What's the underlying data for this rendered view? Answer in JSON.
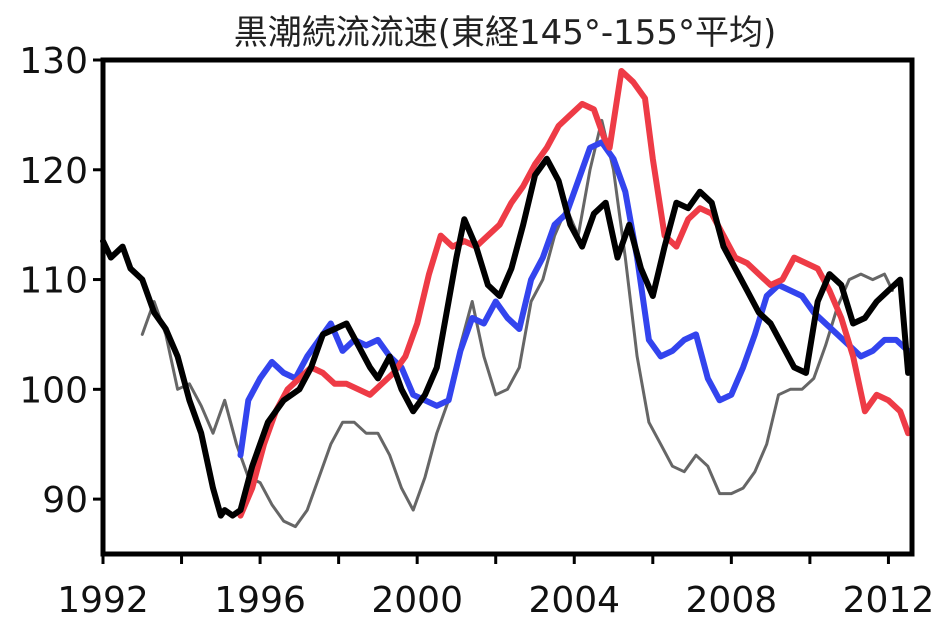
{
  "chart_data": {
    "type": "line",
    "title": "黒潮続流流速(東経145°-155°平均)",
    "xlabel": "",
    "ylabel": "",
    "xlim": [
      1992,
      2012.6
    ],
    "ylim": [
      85,
      130
    ],
    "x_ticks": [
      1992,
      1994,
      1996,
      1998,
      2000,
      2002,
      2004,
      2006,
      2008,
      2010,
      2012
    ],
    "x_tick_labels": [
      "1992",
      "1996",
      "2000",
      "2004",
      "2008",
      "2012"
    ],
    "x_tick_label_values": [
      1992,
      1996,
      2000,
      2004,
      2008,
      2012
    ],
    "y_ticks": [
      90,
      100,
      110,
      120,
      130
    ],
    "y_tick_labels": [
      "90",
      "100",
      "110",
      "120",
      "130"
    ],
    "grid": false,
    "legend": "none",
    "series": [
      {
        "color": "#000000",
        "x": [
          1992.0,
          1992.2,
          1992.5,
          1992.7,
          1993.0,
          1993.3,
          1993.6,
          1993.9,
          1994.2,
          1994.5,
          1994.8,
          1995.0,
          1995.1,
          1995.3,
          1995.5,
          1995.8,
          1996.2,
          1996.6,
          1997.0,
          1997.3,
          1997.6,
          1997.9,
          1998.2,
          1998.5,
          1998.8,
          1999.0,
          1999.3,
          1999.6,
          1999.9,
          2000.2,
          2000.5,
          2000.8,
          2001.0,
          2001.2,
          2001.5,
          2001.8,
          2002.1,
          2002.4,
          2002.7,
          2003.0,
          2003.3,
          2003.6,
          2003.9,
          2004.2,
          2004.5,
          2004.8,
          2005.1,
          2005.4,
          2005.7,
          2006.0,
          2006.3,
          2006.6,
          2006.9,
          2007.2,
          2007.5,
          2007.8,
          2008.1,
          2008.4,
          2008.7,
          2009.0,
          2009.3,
          2009.6,
          2009.9,
          2010.2,
          2010.5,
          2010.8,
          2011.1,
          2011.4,
          2011.7,
          2012.0,
          2012.3,
          2012.5
        ],
        "y": [
          113.5,
          112,
          113,
          111,
          110,
          107,
          105.5,
          103,
          99,
          96,
          91,
          88.5,
          89,
          88.5,
          89,
          93,
          97,
          99,
          100,
          102,
          105,
          105.5,
          106,
          104,
          102,
          101,
          103,
          100,
          98,
          99.5,
          102,
          108,
          112,
          115.5,
          113,
          109.5,
          108.5,
          111,
          115,
          119.5,
          121,
          119,
          115,
          113,
          116,
          117,
          112,
          115,
          111,
          108.5,
          113,
          117,
          116.5,
          118,
          117,
          113,
          111,
          109,
          107,
          106,
          104,
          102,
          101.5,
          108,
          110.5,
          109.5,
          106,
          106.5,
          108,
          109,
          110,
          101.5
        ]
      },
      {
        "color": "#ee3b46",
        "x": [
          1995.5,
          1995.8,
          1996.1,
          1996.4,
          1996.7,
          1997.0,
          1997.3,
          1997.6,
          1997.9,
          1998.2,
          1998.5,
          1998.8,
          1999.1,
          1999.4,
          1999.7,
          2000.0,
          2000.3,
          2000.6,
          2000.9,
          2001.2,
          2001.5,
          2001.8,
          2002.1,
          2002.4,
          2002.7,
          2003.0,
          2003.3,
          2003.6,
          2003.9,
          2004.2,
          2004.5,
          2004.75,
          2004.9,
          2005.2,
          2005.5,
          2005.8,
          2006.0,
          2006.3,
          2006.6,
          2006.9,
          2007.2,
          2007.5,
          2007.8,
          2008.1,
          2008.4,
          2008.7,
          2009.0,
          2009.3,
          2009.6,
          2009.9,
          2010.2,
          2010.5,
          2010.8,
          2011.1,
          2011.4,
          2011.7,
          2012.0,
          2012.3,
          2012.5
        ],
        "y": [
          88.5,
          91,
          95,
          98,
          100,
          101,
          102,
          101.5,
          100.5,
          100.5,
          100,
          99.5,
          100.5,
          101.5,
          103,
          106,
          110.5,
          114,
          113,
          113.5,
          113,
          114,
          115,
          117,
          118.5,
          120.5,
          122,
          124,
          125,
          126,
          125.5,
          123,
          122,
          129,
          128,
          126.5,
          121,
          114,
          113,
          115.5,
          116.5,
          116,
          114,
          112,
          111.5,
          110.5,
          109.5,
          110,
          112,
          111.5,
          111,
          109,
          106.5,
          103,
          98,
          99.5,
          99,
          98,
          96
        ]
      },
      {
        "color": "#3344ee",
        "x": [
          1995.5,
          1995.7,
          1996.0,
          1996.3,
          1996.6,
          1996.9,
          1997.2,
          1997.5,
          1997.8,
          1998.1,
          1998.4,
          1998.7,
          1999.0,
          1999.3,
          1999.6,
          1999.9,
          2000.2,
          2000.5,
          2000.8,
          2001.1,
          2001.4,
          2001.7,
          2002.0,
          2002.3,
          2002.6,
          2002.9,
          2003.2,
          2003.5,
          2003.8,
          2004.1,
          2004.4,
          2004.7,
          2005.0,
          2005.3,
          2005.6,
          2005.9,
          2006.2,
          2006.5,
          2006.8,
          2007.1,
          2007.4,
          2007.7,
          2008.0,
          2008.3,
          2008.6,
          2008.9,
          2009.2,
          2009.5,
          2009.8,
          2010.1,
          2010.4,
          2010.7,
          2011.0,
          2011.3,
          2011.6,
          2011.9,
          2012.2,
          2012.5
        ],
        "y": [
          94,
          99,
          101,
          102.5,
          101.5,
          101,
          103,
          104.5,
          106,
          103.5,
          104.5,
          104,
          104.5,
          103,
          102,
          99.5,
          99,
          98.5,
          99,
          103.5,
          106.5,
          106,
          108,
          106.5,
          105.5,
          110,
          112,
          115,
          116,
          119,
          122,
          122.5,
          121,
          118,
          112,
          104.5,
          103,
          103.5,
          104.5,
          105,
          101,
          99,
          99.5,
          102,
          105,
          108.5,
          109.5,
          109,
          108.5,
          107,
          106,
          105,
          104,
          103,
          103.5,
          104.5,
          104.5,
          103.5
        ]
      },
      {
        "color": "#666666",
        "x": [
          1993.0,
          1993.3,
          1993.6,
          1993.9,
          1994.2,
          1994.5,
          1994.8,
          1995.1,
          1995.4,
          1995.7,
          1996.0,
          1996.3,
          1996.6,
          1996.9,
          1997.2,
          1997.5,
          1997.8,
          1998.1,
          1998.4,
          1998.7,
          1999.0,
          1999.3,
          1999.6,
          1999.9,
          2000.2,
          2000.5,
          2000.8,
          2001.1,
          2001.4,
          2001.7,
          2002.0,
          2002.3,
          2002.6,
          2002.9,
          2003.2,
          2003.5,
          2003.8,
          2004.1,
          2004.4,
          2004.7,
          2005.0,
          2005.3,
          2005.6,
          2005.9,
          2006.2,
          2006.5,
          2006.8,
          2007.1,
          2007.4,
          2007.7,
          2008.0,
          2008.3,
          2008.6,
          2008.9,
          2009.2,
          2009.5,
          2009.8,
          2010.1,
          2010.4,
          2010.7,
          2011.0,
          2011.3,
          2011.6,
          2011.9,
          2012.1
        ],
        "y": [
          105,
          108,
          105,
          100,
          100.5,
          98.5,
          96,
          99,
          95,
          92,
          91.5,
          89.5,
          88,
          87.5,
          89,
          92,
          95,
          97,
          97,
          96,
          96,
          94,
          91,
          89,
          92,
          96,
          99,
          104,
          108,
          103,
          99.5,
          100,
          102,
          108,
          110,
          114,
          116.5,
          114,
          120,
          124.5,
          120,
          112,
          103,
          97,
          95,
          93,
          92.5,
          94,
          93,
          90.5,
          90.5,
          91,
          92.5,
          95,
          99.5,
          100,
          100,
          101,
          104,
          107.5,
          110,
          110.5,
          110,
          110.5,
          109
        ]
      }
    ]
  }
}
